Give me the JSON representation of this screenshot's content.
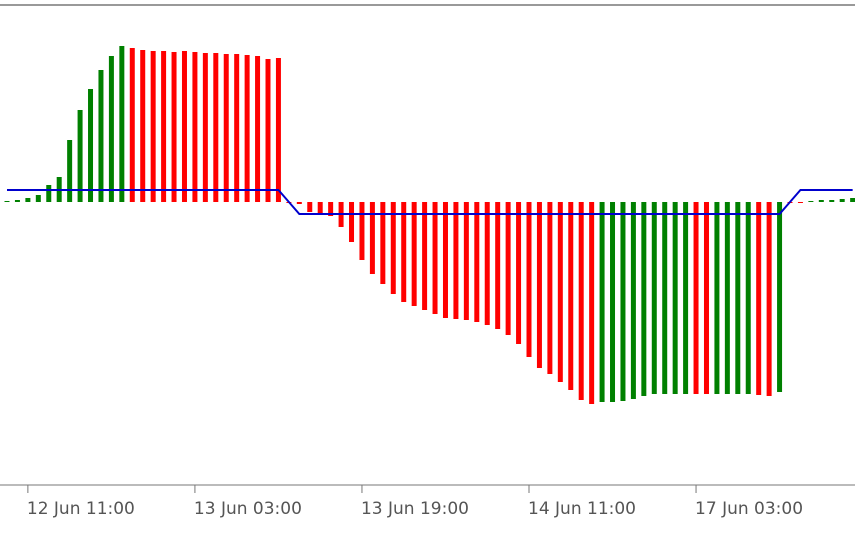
{
  "chart_data": {
    "type": "bar",
    "categories": [
      null,
      null,
      "12 Jun 11:00",
      null,
      null,
      null,
      null,
      null,
      null,
      null,
      null,
      null,
      null,
      null,
      null,
      null,
      null,
      null,
      "13 Jun 03:00",
      null,
      null,
      null,
      null,
      null,
      null,
      null,
      null,
      null,
      null,
      null,
      null,
      null,
      null,
      null,
      "13 Jun 19:00",
      null,
      null,
      null,
      null,
      null,
      null,
      null,
      null,
      null,
      null,
      null,
      null,
      null,
      null,
      null,
      "14 Jun 11:00",
      null,
      null,
      null,
      null,
      null,
      null,
      null,
      null,
      null,
      null,
      null,
      null,
      null,
      null,
      null,
      "17 Jun 03:00",
      null,
      null,
      null,
      null,
      null,
      null,
      null,
      null,
      null,
      null,
      null,
      null,
      null,
      null,
      null
    ],
    "values": [
      1,
      2,
      4,
      7,
      17,
      25,
      62,
      92,
      113,
      132,
      146,
      156,
      154,
      152,
      151,
      151,
      150,
      151,
      150,
      149,
      149,
      148,
      148,
      147,
      146,
      143,
      144,
      -1,
      -2,
      -10,
      -12,
      -14,
      -25,
      -40,
      -58,
      -72,
      -82,
      -92,
      -100,
      -104,
      -108,
      -112,
      -116,
      -117,
      -118,
      -120,
      -123,
      -127,
      -133,
      -142,
      -155,
      -166,
      -172,
      -180,
      -188,
      -198,
      -202,
      -200,
      -200,
      -199,
      -197,
      -194,
      -192,
      -192,
      -192,
      -192,
      -192,
      -192,
      -192,
      -192,
      -192,
      -192,
      -193,
      -194,
      -190,
      -1,
      -1,
      1,
      2,
      2,
      3,
      4
    ],
    "colors": [
      "#008000",
      "#008000",
      "#008000",
      "#008000",
      "#008000",
      "#008000",
      "#008000",
      "#008000",
      "#008000",
      "#008000",
      "#008000",
      "#008000",
      "#ff0000",
      "#ff0000",
      "#ff0000",
      "#ff0000",
      "#ff0000",
      "#ff0000",
      "#ff0000",
      "#ff0000",
      "#ff0000",
      "#ff0000",
      "#ff0000",
      "#ff0000",
      "#ff0000",
      "#ff0000",
      "#ff0000",
      "#ff0000",
      "#ff0000",
      "#ff0000",
      "#ff0000",
      "#ff0000",
      "#ff0000",
      "#ff0000",
      "#ff0000",
      "#ff0000",
      "#ff0000",
      "#ff0000",
      "#ff0000",
      "#ff0000",
      "#ff0000",
      "#ff0000",
      "#ff0000",
      "#ff0000",
      "#ff0000",
      "#ff0000",
      "#ff0000",
      "#ff0000",
      "#ff0000",
      "#ff0000",
      "#ff0000",
      "#ff0000",
      "#ff0000",
      "#ff0000",
      "#ff0000",
      "#ff0000",
      "#ff0000",
      "#008000",
      "#008000",
      "#008000",
      "#008000",
      "#008000",
      "#008000",
      "#008000",
      "#008000",
      "#008000",
      "#ff0000",
      "#ff0000",
      "#008000",
      "#008000",
      "#008000",
      "#008000",
      "#ff0000",
      "#ff0000",
      "#008000",
      "#ff0000",
      "#ff0000",
      "#008000",
      "#008000",
      "#008000",
      "#008000",
      "#008000"
    ],
    "line_values": [
      12,
      12,
      12,
      12,
      12,
      12,
      12,
      12,
      12,
      12,
      12,
      12,
      12,
      12,
      12,
      12,
      12,
      12,
      12,
      12,
      12,
      12,
      12,
      12,
      12,
      12,
      12,
      0,
      -12,
      -12,
      -12,
      -12,
      -12,
      -12,
      -12,
      -12,
      -12,
      -12,
      -12,
      -12,
      -12,
      -12,
      -12,
      -12,
      -12,
      -12,
      -12,
      -12,
      -12,
      -12,
      -12,
      -12,
      -12,
      -12,
      -12,
      -12,
      -12,
      -12,
      -12,
      -12,
      -12,
      -12,
      -12,
      -12,
      -12,
      -12,
      -12,
      -12,
      -12,
      -12,
      -12,
      -12,
      -12,
      -12,
      -12,
      0,
      12,
      12,
      12,
      12,
      12,
      12
    ],
    "line_color": "#0000cd",
    "ylim": [
      -282,
      194
    ]
  }
}
